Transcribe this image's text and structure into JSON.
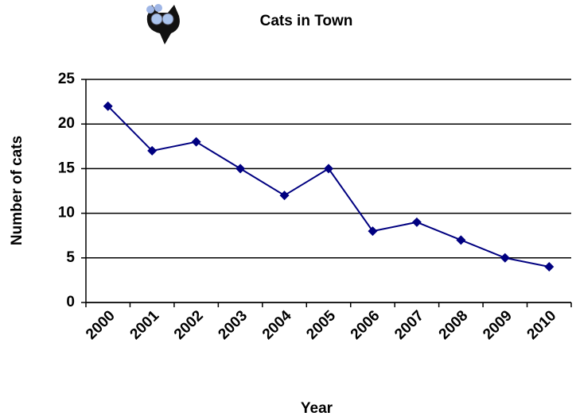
{
  "chart_data": {
    "type": "line",
    "title": "Cats in Town",
    "x_label": "Year",
    "y_label": "Number of cats",
    "categories": [
      "2000",
      "2001",
      "2002",
      "2003",
      "2004",
      "2005",
      "2006",
      "2007",
      "2008",
      "2009",
      "2010"
    ],
    "values": [
      22,
      17,
      18,
      15,
      12,
      15,
      8,
      9,
      7,
      5,
      4
    ],
    "color": "#000080",
    "ylim": [
      0,
      25
    ],
    "yticks": [
      0,
      5,
      10,
      15,
      20,
      25
    ],
    "grid": true
  }
}
